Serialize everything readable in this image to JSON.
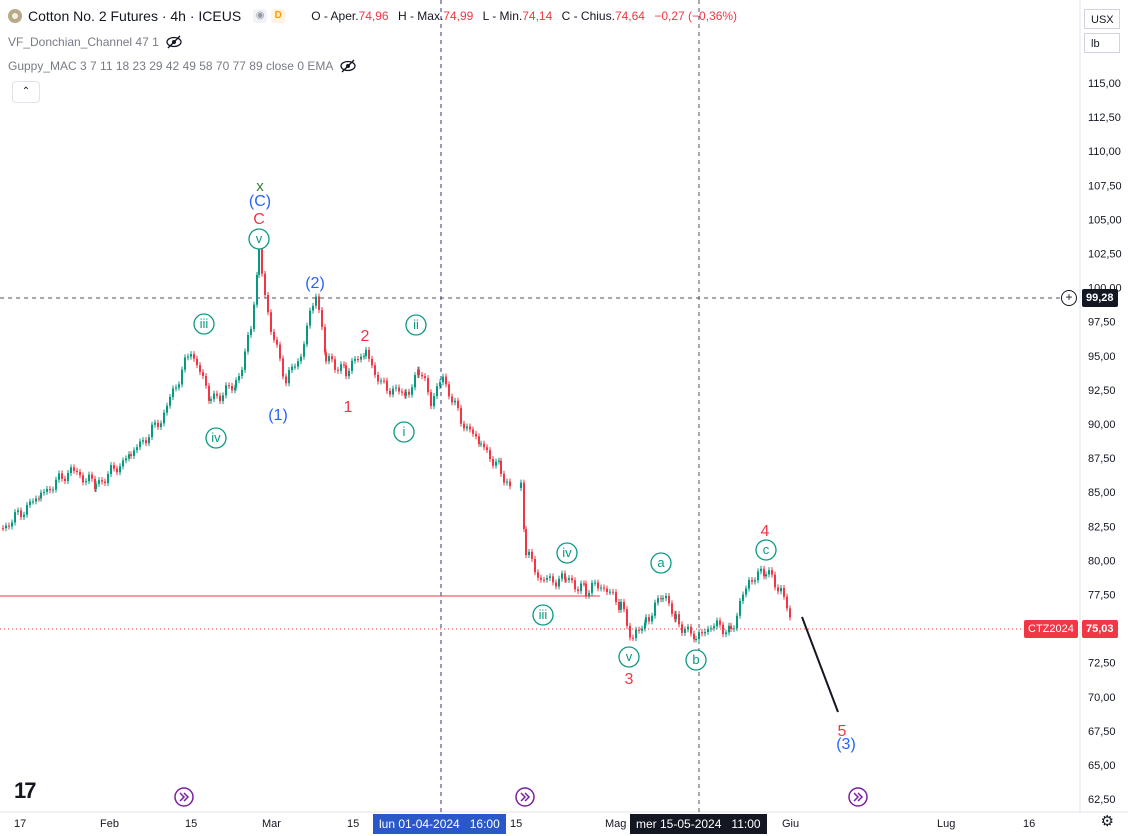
{
  "header": {
    "symbol_title": "Cotton No. 2 Futures · 4h · ICEUS",
    "badge_letter": "D",
    "ohlc": {
      "o_label": "O - Aper.",
      "o_value": "74,96",
      "h_label": "H - Max.",
      "h_value": "74,99",
      "l_label": "L - Min.",
      "l_value": "74,14",
      "c_label": "C - Chius.",
      "c_value": "74,64",
      "change": "−0,27 (−0,36%)"
    },
    "indicators": [
      "VF_Donchian_Channel 47 1",
      "Guppy_MAC 3 7 11 18 23 29 42 49 58 70 77 89 close 0 EMA"
    ],
    "collapse_glyph": "⌃"
  },
  "scale": {
    "currency": "USX",
    "unit": "lb",
    "price_labels": [
      "115,00",
      "112,50",
      "110,00",
      "107,50",
      "105,00",
      "102,50",
      "100,00",
      "97,50",
      "95,00",
      "92,50",
      "90,00",
      "87,50",
      "85,00",
      "82,50",
      "80,00",
      "77,50",
      "75,00",
      "72,50",
      "70,00",
      "67,50",
      "65,00",
      "62,50"
    ],
    "crosshair_price": "99,28",
    "last_price": "75,03",
    "last_symbol": "CTZ2024"
  },
  "time_axis": {
    "labels": [
      "17",
      "Feb",
      "15",
      "Mar",
      "15",
      "15",
      "Mag",
      "Giu",
      "Lug",
      "16"
    ],
    "crosshair_a": "lun 01-04-2024",
    "crosshair_a_time": "16:00",
    "crosshair_b": "mer 15-05-2024",
    "crosshair_b_time": "11:00"
  },
  "waves": {
    "top_x": "x",
    "top_C_paren": "(C)",
    "top_C": "C",
    "circled": [
      "v",
      "iii",
      "iv",
      "ii",
      "i",
      "iv",
      "iii",
      "v",
      "a",
      "b",
      "c"
    ],
    "blue": [
      "(1)",
      "(2)",
      "(3)"
    ],
    "red": [
      "1",
      "2",
      "3",
      "4",
      "5"
    ]
  },
  "colors": {
    "up": "#089981",
    "down": "#f23645",
    "wave_green": "#089981",
    "wave_blue": "#2962ff",
    "wave_red": "#f23645",
    "tag_dark": "#131722"
  },
  "icons": {
    "logo": "tradingview-logo-icon",
    "settings": "gear-icon",
    "visibility": "eye-crossed-icon",
    "jump": "jump-arrow-icon"
  }
}
